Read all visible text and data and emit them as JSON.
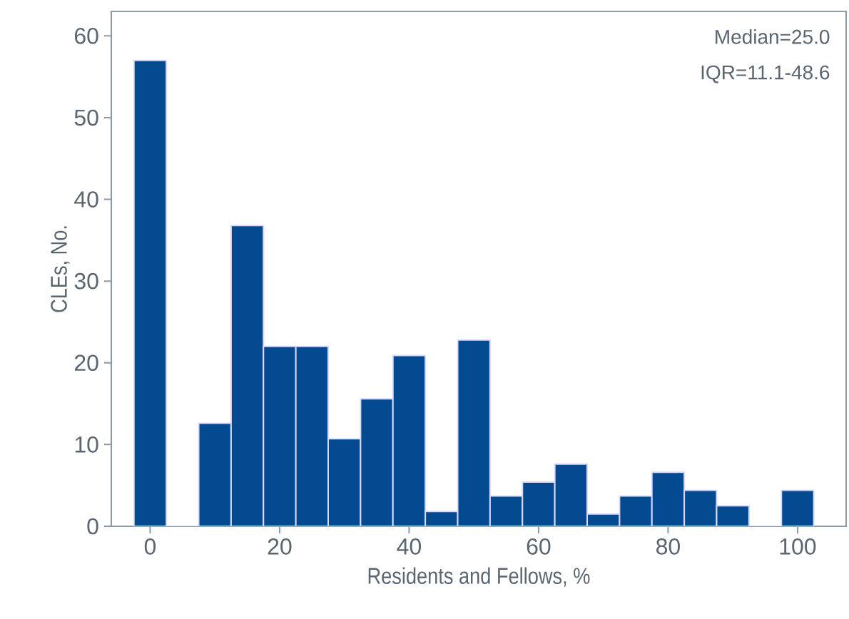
{
  "chart_data": {
    "type": "histogram",
    "xlabel": "Residents and Fellows, %",
    "ylabel": "CLEs, No.",
    "annotations": [
      "Median=25.0",
      "IQR=11.1-48.6"
    ],
    "bins": [
      -2.5,
      2.5,
      7.5,
      12.5,
      17.5,
      22.5,
      27.5,
      32.5,
      37.5,
      42.5,
      47.5,
      52.5,
      57.5,
      62.5,
      67.5,
      72.5,
      77.5,
      82.5,
      87.5,
      92.5,
      97.5,
      102.5
    ],
    "values": [
      57,
      0,
      12.6,
      36.8,
      22,
      22,
      10.7,
      15.6,
      20.9,
      1.8,
      22.8,
      3.7,
      5.4,
      7.6,
      1.5,
      3.7,
      6.6,
      4.4,
      2.5,
      0,
      4.4
    ],
    "color": "#034a90",
    "xlim": [
      -6,
      107.5
    ],
    "ylim": [
      0,
      63
    ],
    "xticks": [
      0,
      20,
      40,
      60,
      80,
      100
    ],
    "yticks": [
      0,
      10,
      20,
      30,
      40,
      50,
      60
    ]
  }
}
